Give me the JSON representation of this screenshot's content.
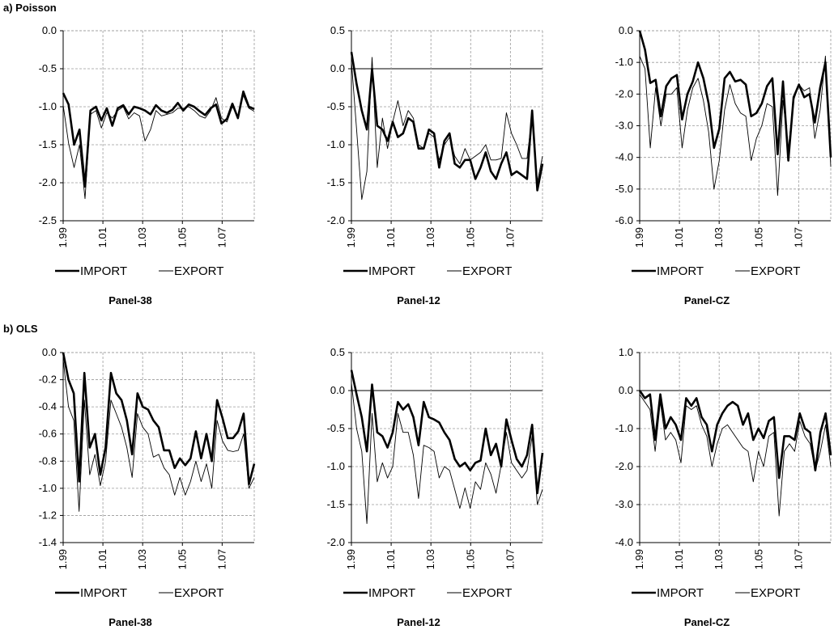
{
  "sections": [
    {
      "label": "a) Poisson"
    },
    {
      "label": "b) OLS"
    }
  ],
  "legend": {
    "import_label": "IMPORT",
    "export_label": "EXPORT"
  },
  "x_tick_labels": [
    "1.99",
    "1.01",
    "1.03",
    "1.05",
    "1.07"
  ],
  "chart_data": [
    {
      "type": "line",
      "section": "a) Poisson",
      "title": "Panel-38",
      "ylim": [
        -2.5,
        0.0
      ],
      "yticks": [
        0.0,
        -0.5,
        -1.0,
        -1.5,
        -2.0,
        -2.5
      ],
      "ytick_labels": [
        "0.0",
        "-0.5",
        "-1.0",
        "-1.5",
        "-2.0",
        "-2.5"
      ],
      "grid": true,
      "legend_position": "bottom",
      "series": [
        {
          "name": "IMPORT",
          "values": [
            -0.82,
            -0.97,
            -1.5,
            -1.3,
            -2.05,
            -1.05,
            -1.0,
            -1.18,
            -1.02,
            -1.25,
            -1.02,
            -0.98,
            -1.1,
            -1.0,
            -1.02,
            -1.05,
            -1.1,
            -0.98,
            -1.05,
            -1.08,
            -1.04,
            -0.95,
            -1.05,
            -0.97,
            -1.0,
            -1.06,
            -1.11,
            -1.02,
            -0.97,
            -1.22,
            -1.16,
            -0.96,
            -1.15,
            -0.8,
            -1.0,
            -1.03
          ]
        },
        {
          "name": "EXPORT",
          "values": [
            -0.98,
            -1.48,
            -1.8,
            -1.5,
            -2.21,
            -1.1,
            -1.05,
            -1.28,
            -1.08,
            -1.15,
            -1.05,
            -1.0,
            -1.16,
            -1.08,
            -1.12,
            -1.45,
            -1.3,
            -1.05,
            -1.12,
            -1.1,
            -1.08,
            -1.02,
            -1.02,
            -1.0,
            -1.05,
            -1.12,
            -1.15,
            -1.05,
            -0.88,
            -1.15,
            -1.2,
            -1.0,
            -1.12,
            -0.85,
            -1.02,
            -1.06
          ]
        }
      ]
    },
    {
      "type": "line",
      "section": "a) Poisson",
      "title": "Panel-12",
      "ylim": [
        -2.0,
        0.5
      ],
      "yticks": [
        0.5,
        0.0,
        -0.5,
        -1.0,
        -1.5,
        -2.0
      ],
      "ytick_labels": [
        "0.5",
        "0.0",
        "-0.5",
        "-1.0",
        "-1.5",
        "-2.0"
      ],
      "grid": true,
      "legend_position": "bottom",
      "series": [
        {
          "name": "IMPORT",
          "values": [
            0.22,
            -0.2,
            -0.55,
            -0.8,
            0.0,
            -0.75,
            -0.8,
            -0.95,
            -0.7,
            -0.9,
            -0.85,
            -0.65,
            -0.7,
            -1.05,
            -1.05,
            -0.8,
            -0.85,
            -1.3,
            -0.95,
            -0.85,
            -1.25,
            -1.3,
            -1.2,
            -1.2,
            -1.45,
            -1.3,
            -1.1,
            -1.35,
            -1.45,
            -1.25,
            -1.1,
            -1.4,
            -1.35,
            -1.4,
            -1.45,
            -0.55,
            -1.6,
            -1.25
          ]
        },
        {
          "name": "EXPORT",
          "values": [
            0.1,
            -0.8,
            -1.72,
            -1.35,
            0.15,
            -1.3,
            -0.65,
            -1.05,
            -0.7,
            -0.42,
            -0.75,
            -0.55,
            -0.65,
            -1.0,
            -1.05,
            -0.85,
            -0.9,
            -1.2,
            -1.0,
            -0.9,
            -1.15,
            -1.25,
            -1.05,
            -1.2,
            -1.15,
            -1.1,
            -1.0,
            -1.2,
            -1.2,
            -1.18,
            -0.58,
            -0.85,
            -1.0,
            -1.18,
            -1.18,
            -0.62,
            -1.5,
            -1.15
          ]
        }
      ]
    },
    {
      "type": "line",
      "section": "a) Poisson",
      "title": "Panel-CZ",
      "ylim": [
        -6.0,
        0.0
      ],
      "yticks": [
        0.0,
        -1.0,
        -2.0,
        -3.0,
        -4.0,
        -5.0,
        -6.0
      ],
      "ytick_labels": [
        "0.0",
        "-1.0",
        "-2.0",
        "-3.0",
        "-4.0",
        "-5.0",
        "-6.0"
      ],
      "grid": true,
      "legend_position": "bottom",
      "series": [
        {
          "name": "IMPORT",
          "values": [
            0.0,
            -0.6,
            -1.65,
            -1.55,
            -2.7,
            -1.75,
            -1.5,
            -1.4,
            -2.8,
            -2.0,
            -1.6,
            -1.0,
            -1.5,
            -2.3,
            -3.7,
            -3.1,
            -1.5,
            -1.3,
            -1.6,
            -1.55,
            -1.7,
            -2.7,
            -2.6,
            -2.3,
            -1.75,
            -1.5,
            -3.9,
            -1.6,
            -4.1,
            -2.1,
            -1.7,
            -2.1,
            -2.0,
            -2.9,
            -1.8,
            -1.0,
            -4.0
          ]
        },
        {
          "name": "EXPORT",
          "values": [
            -0.8,
            -1.2,
            -3.7,
            -1.8,
            -3.0,
            -2.0,
            -2.0,
            -1.8,
            -3.7,
            -2.5,
            -1.8,
            -1.5,
            -2.2,
            -3.2,
            -5.0,
            -4.1,
            -2.5,
            -1.7,
            -2.3,
            -2.6,
            -2.7,
            -4.1,
            -3.4,
            -3.0,
            -2.3,
            -2.4,
            -5.2,
            -2.2,
            -3.7,
            -2.2,
            -1.7,
            -1.9,
            -1.8,
            -3.4,
            -2.5,
            -0.8,
            -4.3
          ]
        }
      ]
    },
    {
      "type": "line",
      "section": "b) OLS",
      "title": "Panel-38",
      "ylim": [
        -1.4,
        0.0
      ],
      "yticks": [
        0.0,
        -0.2,
        -0.4,
        -0.6,
        -0.8,
        -1.0,
        -1.2,
        -1.4
      ],
      "ytick_labels": [
        "0.0",
        "-0.2",
        "-0.4",
        "-0.6",
        "-0.8",
        "-1.0",
        "-1.2",
        "-1.4"
      ],
      "grid": true,
      "legend_position": "bottom",
      "series": [
        {
          "name": "IMPORT",
          "values": [
            0.0,
            -0.2,
            -0.3,
            -0.95,
            -0.15,
            -0.7,
            -0.6,
            -0.9,
            -0.7,
            -0.15,
            -0.3,
            -0.35,
            -0.5,
            -0.75,
            -0.3,
            -0.4,
            -0.42,
            -0.5,
            -0.55,
            -0.72,
            -0.72,
            -0.85,
            -0.78,
            -0.83,
            -0.78,
            -0.58,
            -0.78,
            -0.6,
            -0.8,
            -0.35,
            -0.48,
            -0.63,
            -0.63,
            -0.58,
            -0.45,
            -0.97,
            -0.82
          ]
        },
        {
          "name": "EXPORT",
          "values": [
            -0.05,
            -0.4,
            -0.5,
            -1.17,
            -0.35,
            -0.9,
            -0.75,
            -0.98,
            -0.8,
            -0.35,
            -0.45,
            -0.55,
            -0.7,
            -0.92,
            -0.45,
            -0.55,
            -0.6,
            -0.77,
            -0.75,
            -0.85,
            -0.9,
            -1.05,
            -0.92,
            -1.05,
            -0.95,
            -0.8,
            -0.95,
            -0.82,
            -1.0,
            -0.5,
            -0.65,
            -0.72,
            -0.73,
            -0.72,
            -0.6,
            -1.0,
            -0.92
          ]
        }
      ]
    },
    {
      "type": "line",
      "section": "b) OLS",
      "title": "Panel-12",
      "ylim": [
        -2.0,
        0.5
      ],
      "yticks": [
        0.5,
        0.0,
        -0.5,
        -1.0,
        -1.5,
        -2.0
      ],
      "ytick_labels": [
        "0.5",
        "0.0",
        "-0.5",
        "-1.0",
        "-1.5",
        "-2.0"
      ],
      "grid": true,
      "legend_position": "bottom",
      "series": [
        {
          "name": "IMPORT",
          "values": [
            0.27,
            -0.05,
            -0.35,
            -0.8,
            0.08,
            -0.55,
            -0.6,
            -0.75,
            -0.55,
            -0.15,
            -0.25,
            -0.18,
            -0.35,
            -0.72,
            -0.15,
            -0.35,
            -0.38,
            -0.42,
            -0.55,
            -0.65,
            -0.9,
            -1.0,
            -0.95,
            -1.05,
            -0.95,
            -0.92,
            -0.5,
            -0.85,
            -0.7,
            -1.0,
            -0.38,
            -0.65,
            -0.9,
            -1.0,
            -0.85,
            -0.45,
            -1.35,
            -0.82
          ]
        },
        {
          "name": "EXPORT",
          "values": [
            0.1,
            -0.5,
            -0.8,
            -1.75,
            -0.3,
            -1.2,
            -0.95,
            -1.15,
            -1.0,
            -0.3,
            -0.55,
            -0.55,
            -0.85,
            -1.42,
            -0.72,
            -0.75,
            -0.8,
            -1.15,
            -1.0,
            -1.05,
            -1.3,
            -1.55,
            -1.28,
            -1.55,
            -1.2,
            -1.3,
            -0.95,
            -1.1,
            -1.35,
            -0.98,
            -0.55,
            -0.95,
            -1.05,
            -1.15,
            -1.05,
            -0.6,
            -1.5,
            -1.3
          ]
        }
      ]
    },
    {
      "type": "line",
      "section": "b) OLS",
      "title": "Panel-CZ",
      "ylim": [
        -4.0,
        1.0
      ],
      "yticks": [
        1.0,
        0.0,
        -1.0,
        -2.0,
        -3.0,
        -4.0
      ],
      "ytick_labels": [
        "1.0",
        "0.0",
        "-1.0",
        "-2.0",
        "-3.0",
        "-4.0"
      ],
      "grid": true,
      "legend_position": "bottom",
      "series": [
        {
          "name": "IMPORT",
          "values": [
            0.0,
            -0.2,
            -0.1,
            -1.3,
            -0.1,
            -1.0,
            -0.7,
            -0.9,
            -1.3,
            -0.2,
            -0.4,
            -0.2,
            -0.7,
            -0.9,
            -1.6,
            -0.9,
            -0.6,
            -0.4,
            -0.3,
            -0.4,
            -0.9,
            -0.6,
            -1.3,
            -1.0,
            -1.25,
            -0.8,
            -0.7,
            -2.3,
            -1.2,
            -1.2,
            -1.3,
            -0.6,
            -1.0,
            -1.1,
            -2.1,
            -1.1,
            -0.6,
            -1.7
          ]
        },
        {
          "name": "EXPORT",
          "values": [
            -0.1,
            -0.3,
            -0.5,
            -1.6,
            -0.3,
            -1.3,
            -1.1,
            -1.3,
            -1.9,
            -0.4,
            -0.5,
            -0.4,
            -0.9,
            -1.2,
            -2.0,
            -1.4,
            -1.0,
            -0.9,
            -1.1,
            -1.3,
            -1.5,
            -1.6,
            -2.4,
            -1.6,
            -2.0,
            -1.2,
            -1.1,
            -3.3,
            -1.6,
            -1.4,
            -1.6,
            -0.8,
            -1.2,
            -1.4,
            -2.1,
            -1.6,
            -0.9,
            -2.0
          ]
        }
      ]
    }
  ]
}
